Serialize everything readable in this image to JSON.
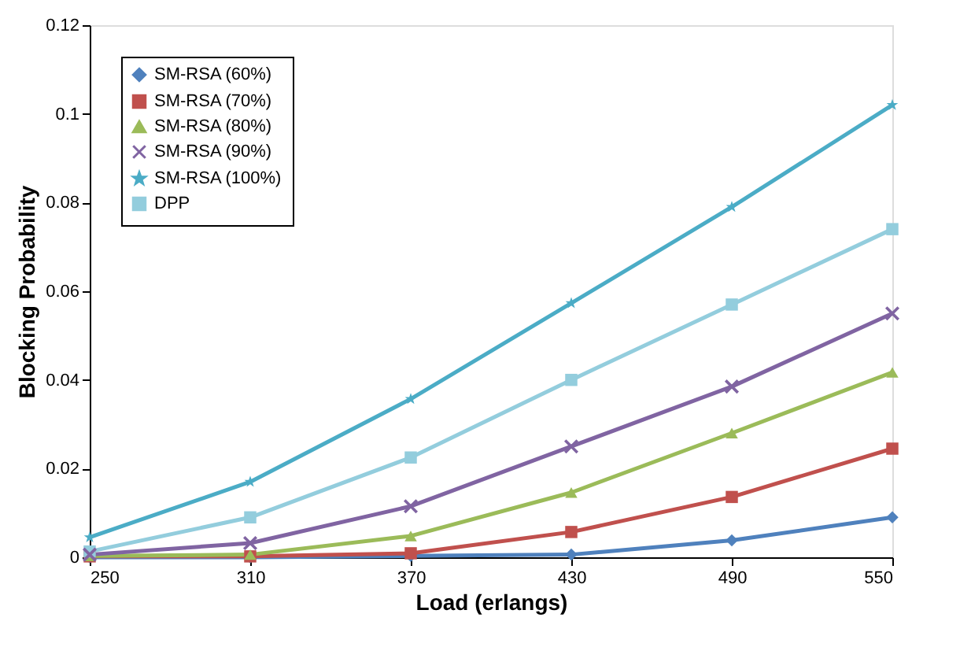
{
  "chart_data": {
    "type": "line",
    "xlabel": "Load (erlangs)",
    "ylabel": "Blocking Probability",
    "x": [
      250,
      310,
      370,
      430,
      490,
      550
    ],
    "series": [
      {
        "name": "SM-RSA (60%)",
        "color": "#4f81bd",
        "marker": "diamond",
        "values": [
          0,
          0,
          0.0003,
          0.0006,
          0.0038,
          0.009
        ]
      },
      {
        "name": "SM-RSA (70%)",
        "color": "#c0504d",
        "marker": "square",
        "values": [
          0.0002,
          0.0002,
          0.0009,
          0.0057,
          0.0136,
          0.0245
        ]
      },
      {
        "name": "SM-RSA (80%)",
        "color": "#9bbb59",
        "marker": "triangle",
        "values": [
          0.0003,
          0.0006,
          0.0048,
          0.0146,
          0.028,
          0.0417
        ]
      },
      {
        "name": "SM-RSA (90%)",
        "color": "#8064a2",
        "marker": "cross",
        "values": [
          0.0006,
          0.0032,
          0.0115,
          0.025,
          0.0385,
          0.055
        ]
      },
      {
        "name": "SM-RSA (100%)",
        "color": "#4bacc6",
        "marker": "star",
        "values": [
          0.0045,
          0.017,
          0.0357,
          0.0573,
          0.079,
          0.102
        ]
      },
      {
        "name": "DPP",
        "color": "#93cddd",
        "marker": "square",
        "values": [
          0.0013,
          0.009,
          0.0225,
          0.04,
          0.057,
          0.074
        ]
      }
    ],
    "xlim": [
      250,
      550
    ],
    "xticks": [
      250,
      310,
      370,
      430,
      490,
      550
    ],
    "ylim": [
      0,
      0.12
    ],
    "yticks": [
      0,
      0.02,
      0.04,
      0.06,
      0.08,
      0.1,
      0.12
    ],
    "grid": false,
    "legend": "top left",
    "line_style": "solid"
  }
}
